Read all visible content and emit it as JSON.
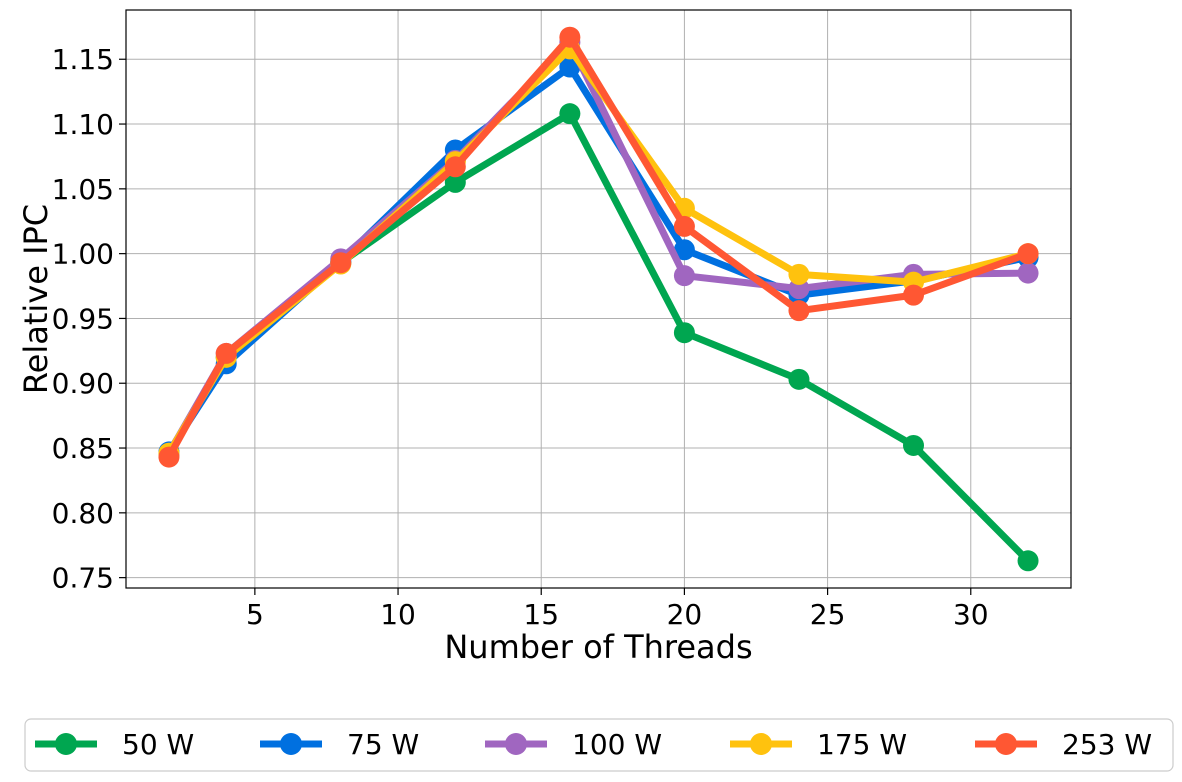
{
  "chart_data": {
    "type": "line",
    "title": "",
    "xlabel": "Number of Threads",
    "ylabel": "Relative IPC",
    "x": [
      2,
      4,
      8,
      12,
      16,
      20,
      24,
      28,
      32
    ],
    "xlim": [
      0.5,
      33.5
    ],
    "ylim": [
      0.742,
      1.188
    ],
    "xticks": [
      5,
      10,
      15,
      20,
      25,
      30
    ],
    "yticks": [
      0.75,
      0.8,
      0.85,
      0.9,
      0.95,
      1.0,
      1.05,
      1.1,
      1.15
    ],
    "xtick_labels": [
      "5",
      "10",
      "15",
      "20",
      "25",
      "30"
    ],
    "ytick_labels": [
      "0.75",
      "0.80",
      "0.85",
      "0.90",
      "0.95",
      "1.00",
      "1.05",
      "1.10",
      "1.15"
    ],
    "grid": true,
    "legend_position": "bottom-center, below plot, single row",
    "series": [
      {
        "name": "50 W",
        "color": "#00a650",
        "values": [
          0.845,
          0.92,
          0.993,
          1.055,
          1.108,
          0.939,
          0.903,
          0.852,
          0.763
        ]
      },
      {
        "name": "75 W",
        "color": "#0070e0",
        "values": [
          0.847,
          0.915,
          0.994,
          1.08,
          1.144,
          1.003,
          0.968,
          0.979,
          0.997
        ]
      },
      {
        "name": "100 W",
        "color": "#a066c0",
        "values": [
          0.846,
          0.923,
          0.996,
          1.072,
          1.163,
          0.983,
          0.973,
          0.984,
          0.985
        ]
      },
      {
        "name": "175 W",
        "color": "#ffc20e",
        "values": [
          0.846,
          0.92,
          0.992,
          1.071,
          1.158,
          1.035,
          0.984,
          0.978,
          1.0
        ]
      },
      {
        "name": "253 W",
        "color": "#ff5733",
        "values": [
          0.843,
          0.923,
          0.993,
          1.067,
          1.167,
          1.021,
          0.956,
          0.968,
          1.0
        ]
      }
    ]
  }
}
